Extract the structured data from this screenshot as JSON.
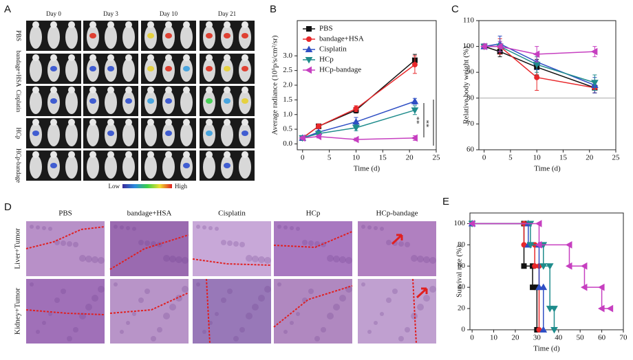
{
  "panels": {
    "A": {
      "label": "A",
      "columns": [
        "Day 0",
        "Day 3",
        "Day 10",
        "Day 21"
      ],
      "rows": [
        "PBS",
        "bandage+HSA",
        "Cisplatin",
        "HCp",
        "HCp-bandage"
      ],
      "colorbar": {
        "low": "Low",
        "high": "High"
      }
    },
    "D": {
      "label": "D",
      "columns": [
        "PBS",
        "bandage+HSA",
        "Cisplatin",
        "HCp",
        "HCp-bandage"
      ],
      "rows": [
        "Liver+Tumor",
        "Kidney+Tumor"
      ]
    }
  },
  "chart_data": [
    {
      "type": "line",
      "panel_label": "B",
      "xlabel": "Time (d)",
      "ylabel": "Average radiance (10⁵p/s/cm²/sr)",
      "x": [
        0,
        3,
        10,
        21
      ],
      "xlim": [
        -1,
        25
      ],
      "xticks": [
        0,
        5,
        10,
        15,
        20,
        25
      ],
      "ylim": [
        -0.2,
        4.2
      ],
      "yticks": [
        {
          "value": 0,
          "label": "0.0"
        },
        0.5,
        {
          "value": 1,
          "label": "1.0"
        },
        1.5,
        {
          "value": 2,
          "label": "2.0"
        },
        2.5,
        {
          "value": 3,
          "label": "3.0"
        }
      ],
      "legend": "upper left",
      "annotations": [
        "**",
        "**"
      ],
      "series": [
        {
          "name": "PBS",
          "color": "#111111",
          "marker": "square",
          "values": [
            0.2,
            0.6,
            1.15,
            2.85
          ],
          "errors": [
            0.05,
            0.08,
            0.1,
            0.2
          ]
        },
        {
          "name": "bandage+HSA",
          "color": "#e8282b",
          "marker": "circle",
          "values": [
            0.2,
            0.6,
            1.2,
            2.7
          ],
          "errors": [
            0.05,
            0.08,
            0.1,
            0.3
          ]
        },
        {
          "name": "Cisplatin",
          "color": "#2f4fc4",
          "marker": "triangle-up",
          "values": [
            0.2,
            0.4,
            0.75,
            1.45
          ],
          "errors": [
            0.05,
            0.06,
            0.15,
            0.1
          ]
        },
        {
          "name": "HCp",
          "color": "#1f8c8c",
          "marker": "triangle-down",
          "values": [
            0.2,
            0.35,
            0.55,
            1.15
          ],
          "errors": [
            0.05,
            0.06,
            0.1,
            0.15
          ]
        },
        {
          "name": "HCp-bandage",
          "color": "#c63fc0",
          "marker": "triangle-left",
          "values": [
            0.2,
            0.25,
            0.15,
            0.2
          ],
          "errors": [
            0.05,
            0.05,
            0.05,
            0.08
          ]
        }
      ]
    },
    {
      "type": "line",
      "panel_label": "C",
      "xlabel": "Time (d)",
      "ylabel": "Relative body weight (%)",
      "x": [
        0,
        3,
        10,
        21
      ],
      "xlim": [
        -1,
        25
      ],
      "xticks": [
        0,
        5,
        10,
        15,
        20,
        25
      ],
      "ylim": [
        60,
        110
      ],
      "yticks": [
        60,
        70,
        80,
        90,
        100,
        110
      ],
      "hline": 80,
      "series": [
        {
          "color": "#111111",
          "marker": "square",
          "values": [
            100,
            98,
            92,
            84
          ],
          "errors": [
            1,
            2,
            3,
            2
          ]
        },
        {
          "color": "#e8282b",
          "marker": "circle",
          "values": [
            100,
            100,
            88,
            84
          ],
          "errors": [
            1,
            3,
            5,
            2
          ]
        },
        {
          "color": "#2f4fc4",
          "marker": "triangle-up",
          "values": [
            100,
            101,
            94,
            85
          ],
          "errors": [
            1,
            3,
            3,
            3
          ]
        },
        {
          "color": "#1f8c8c",
          "marker": "triangle-down",
          "values": [
            100,
            100,
            93,
            86
          ],
          "errors": [
            1,
            2,
            3,
            3
          ]
        },
        {
          "color": "#c63fc0",
          "marker": "triangle-left",
          "values": [
            100,
            100,
            97,
            98
          ],
          "errors": [
            1,
            2,
            3,
            2
          ]
        }
      ]
    },
    {
      "type": "line",
      "panel_label": "E",
      "xlabel": "Time (d)",
      "ylabel": "Survival rate (%)",
      "xlim": [
        -1,
        70
      ],
      "xticks": [
        0,
        10,
        20,
        30,
        40,
        50,
        60,
        70
      ],
      "ylim": [
        0,
        110
      ],
      "yticks": [
        0,
        20,
        40,
        60,
        80,
        100
      ],
      "series": [
        {
          "color": "#111111",
          "marker": "square",
          "x": [
            0,
            24,
            24,
            28,
            28,
            30,
            30
          ],
          "values": [
            100,
            100,
            60,
            60,
            40,
            40,
            0
          ]
        },
        {
          "color": "#e8282b",
          "marker": "circle",
          "x": [
            0,
            24,
            24,
            29,
            29,
            31,
            31
          ],
          "values": [
            100,
            100,
            80,
            80,
            60,
            60,
            0
          ]
        },
        {
          "color": "#2f4fc4",
          "marker": "triangle-up",
          "x": [
            0,
            26,
            26,
            31,
            31,
            33,
            33
          ],
          "values": [
            100,
            100,
            80,
            80,
            40,
            40,
            0
          ]
        },
        {
          "color": "#1f8c8c",
          "marker": "triangle-down",
          "x": [
            0,
            27,
            27,
            33,
            33,
            36,
            36,
            38,
            38
          ],
          "values": [
            100,
            100,
            80,
            80,
            60,
            60,
            20,
            20,
            0
          ]
        },
        {
          "color": "#c63fc0",
          "marker": "triangle-left",
          "x": [
            0,
            31,
            31,
            45,
            45,
            52,
            52,
            60,
            60,
            64
          ],
          "values": [
            100,
            100,
            80,
            80,
            60,
            60,
            40,
            40,
            20,
            20
          ]
        }
      ]
    }
  ]
}
